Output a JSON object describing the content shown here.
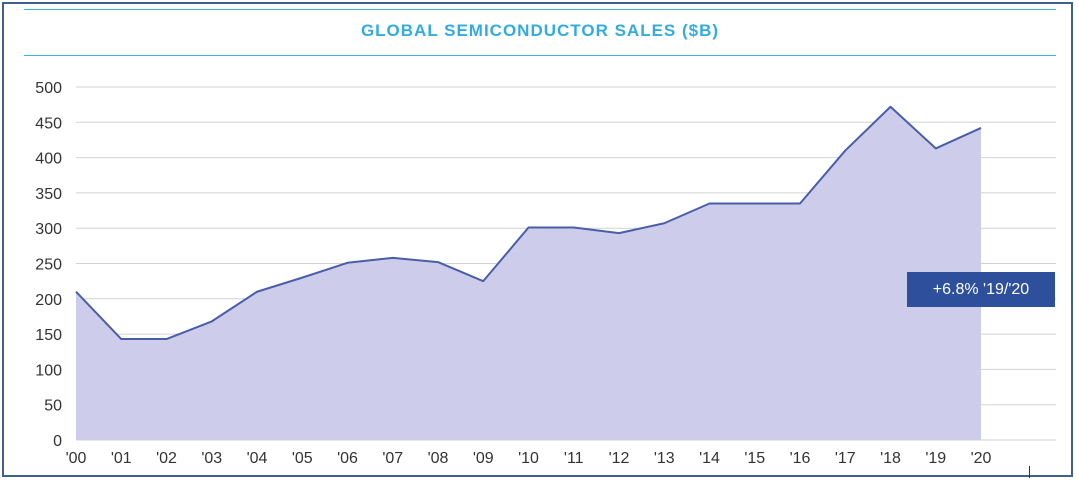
{
  "chart_data": {
    "type": "area",
    "title": "GLOBAL SEMICONDUCTOR SALES ($B)",
    "xlabel": "",
    "ylabel": "",
    "categories": [
      "'00",
      "'01",
      "'02",
      "'03",
      "'04",
      "'05",
      "'06",
      "'07",
      "'08",
      "'09",
      "'10",
      "'11",
      "'12",
      "'13",
      "'14",
      "'15",
      "'16",
      "'17",
      "'18",
      "'19",
      "'20"
    ],
    "values": [
      210,
      143,
      143,
      168,
      210,
      230,
      251,
      258,
      252,
      225,
      301,
      301,
      293,
      307,
      335,
      335,
      335,
      410,
      472,
      413,
      442
    ],
    "yticks": [
      "0",
      "50",
      "100",
      "150",
      "200",
      "250",
      "300",
      "350",
      "400",
      "450",
      "500"
    ],
    "ylim": [
      0,
      500
    ],
    "grid": true,
    "legend": "none",
    "annotation": "+6.8% '19/'20"
  },
  "colors": {
    "fill": "#cdcdeb",
    "line": "#4a5ea8",
    "title": "#32ace0",
    "rule": "#3db4e5",
    "grid": "#d2d2d2",
    "callout_bg": "#2d4f9c",
    "frame": "#3f5f8f"
  }
}
